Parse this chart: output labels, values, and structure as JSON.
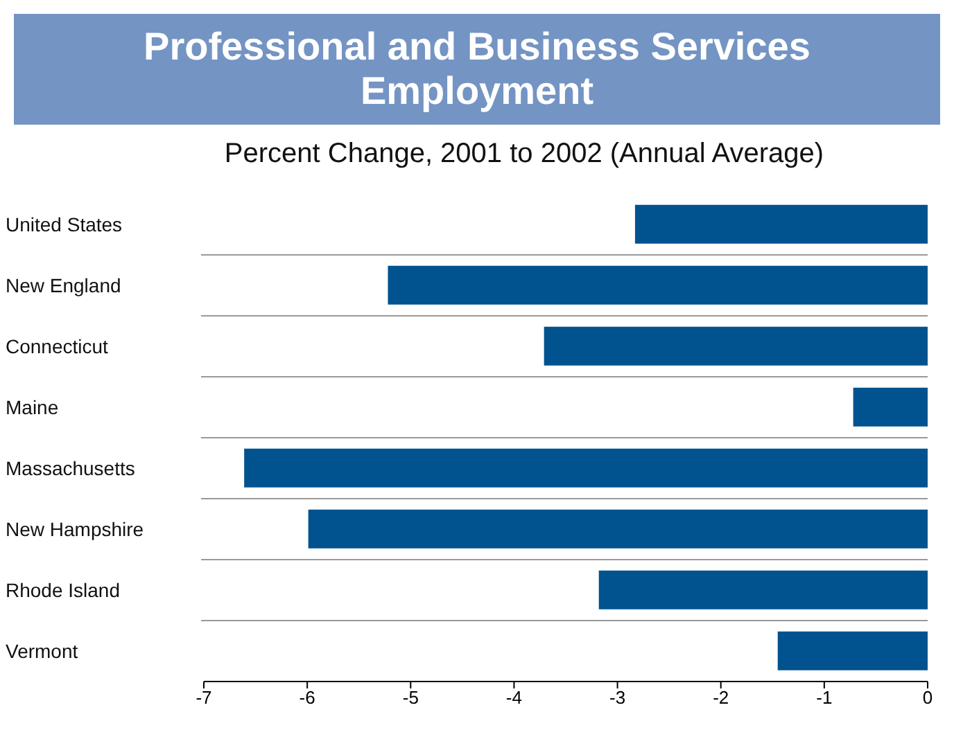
{
  "chart_data": {
    "type": "bar",
    "orientation": "horizontal",
    "title": "Professional and Business Services Employment",
    "subtitle": "Percent Change, 2001 to 2002 (Annual Average)",
    "categories": [
      "United States",
      "New England",
      "Connecticut",
      "Maine",
      "Massachusetts",
      "New Hampshire",
      "Rhode Island",
      "Vermont"
    ],
    "values": [
      -2.83,
      -5.22,
      -3.71,
      -0.72,
      -6.61,
      -5.99,
      -3.18,
      -1.45
    ],
    "color": "#00538f",
    "xlim": [
      -7,
      0
    ],
    "xticks": [
      -7,
      -6,
      -5,
      -4,
      -3,
      -2,
      -1,
      0
    ]
  }
}
